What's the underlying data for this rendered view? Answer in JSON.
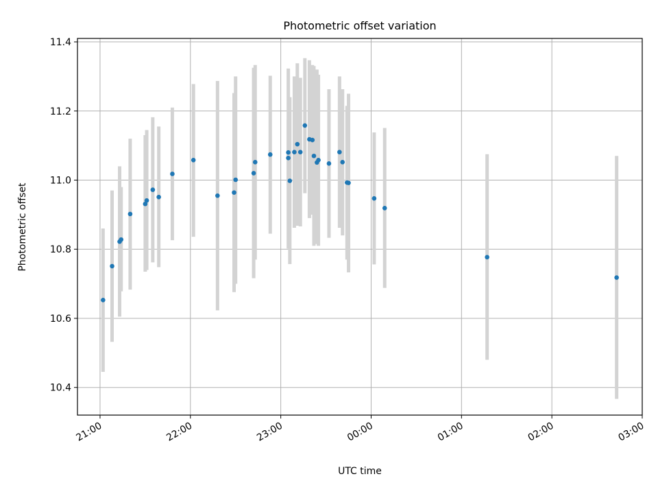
{
  "chart_data": {
    "type": "scatter",
    "title": "Photometric offset variation",
    "xlabel": "UTC time",
    "ylabel": "Photometric offset",
    "grid": true,
    "ylim": [
      10.32,
      11.41
    ],
    "xlim": [
      "20:45",
      "03:00"
    ],
    "x_ticks": [
      "21:00",
      "22:00",
      "23:00",
      "00:00",
      "01:00",
      "02:00",
      "03:00"
    ],
    "y_ticks": [
      "10.4",
      "10.6",
      "10.8",
      "11.0",
      "11.2",
      "11.4"
    ],
    "points": [
      {
        "time": "21:02",
        "y": 10.653,
        "low": 10.445,
        "high": 10.86
      },
      {
        "time": "21:08",
        "y": 10.751,
        "low": 10.532,
        "high": 10.97
      },
      {
        "time": "21:13",
        "y": 10.822,
        "low": 10.605,
        "high": 11.04
      },
      {
        "time": "21:14",
        "y": 10.828,
        "low": 10.678,
        "high": 10.98
      },
      {
        "time": "21:20",
        "y": 10.902,
        "low": 10.683,
        "high": 11.12
      },
      {
        "time": "21:30",
        "y": 10.931,
        "low": 10.735,
        "high": 11.13
      },
      {
        "time": "21:31",
        "y": 10.941,
        "low": 10.74,
        "high": 11.145
      },
      {
        "time": "21:35",
        "y": 10.972,
        "low": 10.762,
        "high": 11.182
      },
      {
        "time": "21:39",
        "y": 10.951,
        "low": 10.748,
        "high": 11.155
      },
      {
        "time": "21:48",
        "y": 11.018,
        "low": 10.826,
        "high": 11.21
      },
      {
        "time": "22:02",
        "y": 11.058,
        "low": 10.836,
        "high": 11.278
      },
      {
        "time": "22:18",
        "y": 10.955,
        "low": 10.623,
        "high": 11.287
      },
      {
        "time": "22:29",
        "y": 10.964,
        "low": 10.676,
        "high": 11.252
      },
      {
        "time": "22:30",
        "y": 11.001,
        "low": 10.7,
        "high": 11.3
      },
      {
        "time": "22:42",
        "y": 11.02,
        "low": 10.716,
        "high": 11.325
      },
      {
        "time": "22:43",
        "y": 11.052,
        "low": 10.77,
        "high": 11.333
      },
      {
        "time": "22:53",
        "y": 11.074,
        "low": 10.845,
        "high": 11.302
      },
      {
        "time": "23:05",
        "y": 11.064,
        "low": 10.802,
        "high": 11.323
      },
      {
        "time": "23:05",
        "y": 11.08,
        "low": 10.985,
        "high": 11.175
      },
      {
        "time": "23:06",
        "y": 10.998,
        "low": 10.757,
        "high": 11.24
      },
      {
        "time": "23:09",
        "y": 11.081,
        "low": 10.862,
        "high": 11.3
      },
      {
        "time": "23:11",
        "y": 11.104,
        "low": 10.868,
        "high": 11.338
      },
      {
        "time": "23:13",
        "y": 11.081,
        "low": 10.866,
        "high": 11.296
      },
      {
        "time": "23:16",
        "y": 11.158,
        "low": 10.962,
        "high": 11.353
      },
      {
        "time": "23:19",
        "y": 11.118,
        "low": 10.89,
        "high": 11.347
      },
      {
        "time": "23:21",
        "y": 11.116,
        "low": 10.9,
        "high": 11.333
      },
      {
        "time": "23:22",
        "y": 11.07,
        "low": 10.81,
        "high": 11.33
      },
      {
        "time": "23:24",
        "y": 11.051,
        "low": 10.815,
        "high": 11.32
      },
      {
        "time": "23:25",
        "y": 11.058,
        "low": 10.81,
        "high": 11.305
      },
      {
        "time": "23:32",
        "y": 11.048,
        "low": 10.833,
        "high": 11.263
      },
      {
        "time": "23:39",
        "y": 11.081,
        "low": 10.862,
        "high": 11.3
      },
      {
        "time": "23:41",
        "y": 11.052,
        "low": 10.84,
        "high": 11.263
      },
      {
        "time": "23:44",
        "y": 10.993,
        "low": 10.77,
        "high": 11.215
      },
      {
        "time": "23:45",
        "y": 10.992,
        "low": 10.733,
        "high": 11.25
      },
      {
        "time": "00:02",
        "y": 10.947,
        "low": 10.756,
        "high": 11.138
      },
      {
        "time": "00:09",
        "y": 10.919,
        "low": 10.688,
        "high": 11.151
      },
      {
        "time": "01:17",
        "y": 10.777,
        "low": 10.48,
        "high": 11.075
      },
      {
        "time": "02:43",
        "y": 10.718,
        "low": 10.367,
        "high": 11.07
      }
    ],
    "marker_color": "#1f77b4",
    "errorbar_color": "#d3d3d3",
    "grid_color": "#b0b0b0"
  }
}
